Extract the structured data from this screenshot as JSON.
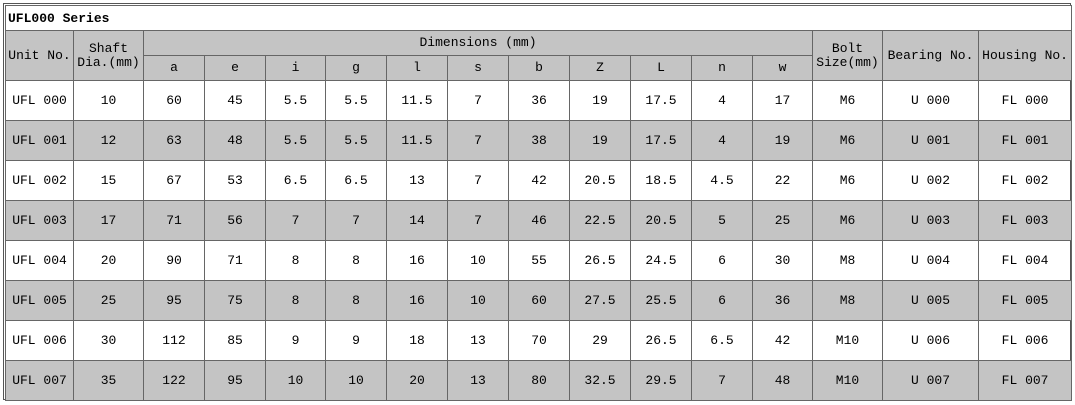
{
  "title": "UFL000 Series",
  "header": {
    "unit": "Unit No.",
    "shaft": [
      "Shaft",
      "Dia.(mm)"
    ],
    "dimensions": "Dimensions (mm)",
    "dims": [
      "a",
      "e",
      "i",
      "g",
      "l",
      "s",
      "b",
      "Z",
      "L",
      "n",
      "w"
    ],
    "bolt": [
      "Bolt",
      "Size(mm)"
    ],
    "bearing": "Bearing No.",
    "housing": "Housing No."
  },
  "rows": [
    [
      "UFL 000",
      "10",
      "60",
      "45",
      "5.5",
      "5.5",
      "11.5",
      "7",
      "36",
      "19",
      "17.5",
      "4",
      "17",
      "M6",
      "U 000",
      "FL 000"
    ],
    [
      "UFL 001",
      "12",
      "63",
      "48",
      "5.5",
      "5.5",
      "11.5",
      "7",
      "38",
      "19",
      "17.5",
      "4",
      "19",
      "M6",
      "U 001",
      "FL 001"
    ],
    [
      "UFL 002",
      "15",
      "67",
      "53",
      "6.5",
      "6.5",
      "13",
      "7",
      "42",
      "20.5",
      "18.5",
      "4.5",
      "22",
      "M6",
      "U 002",
      "FL 002"
    ],
    [
      "UFL 003",
      "17",
      "71",
      "56",
      "7",
      "7",
      "14",
      "7",
      "46",
      "22.5",
      "20.5",
      "5",
      "25",
      "M6",
      "U 003",
      "FL 003"
    ],
    [
      "UFL 004",
      "20",
      "90",
      "71",
      "8",
      "8",
      "16",
      "10",
      "55",
      "26.5",
      "24.5",
      "6",
      "30",
      "M8",
      "U 004",
      "FL 004"
    ],
    [
      "UFL 005",
      "25",
      "95",
      "75",
      "8",
      "8",
      "16",
      "10",
      "60",
      "27.5",
      "25.5",
      "6",
      "36",
      "M8",
      "U 005",
      "FL 005"
    ],
    [
      "UFL 006",
      "30",
      "112",
      "85",
      "9",
      "9",
      "18",
      "13",
      "70",
      "29",
      "26.5",
      "6.5",
      "42",
      "M10",
      "U 006",
      "FL 006"
    ],
    [
      "UFL 007",
      "35",
      "122",
      "95",
      "10",
      "10",
      "20",
      "13",
      "80",
      "32.5",
      "29.5",
      "7",
      "48",
      "M10",
      "U 007",
      "FL 007"
    ]
  ]
}
